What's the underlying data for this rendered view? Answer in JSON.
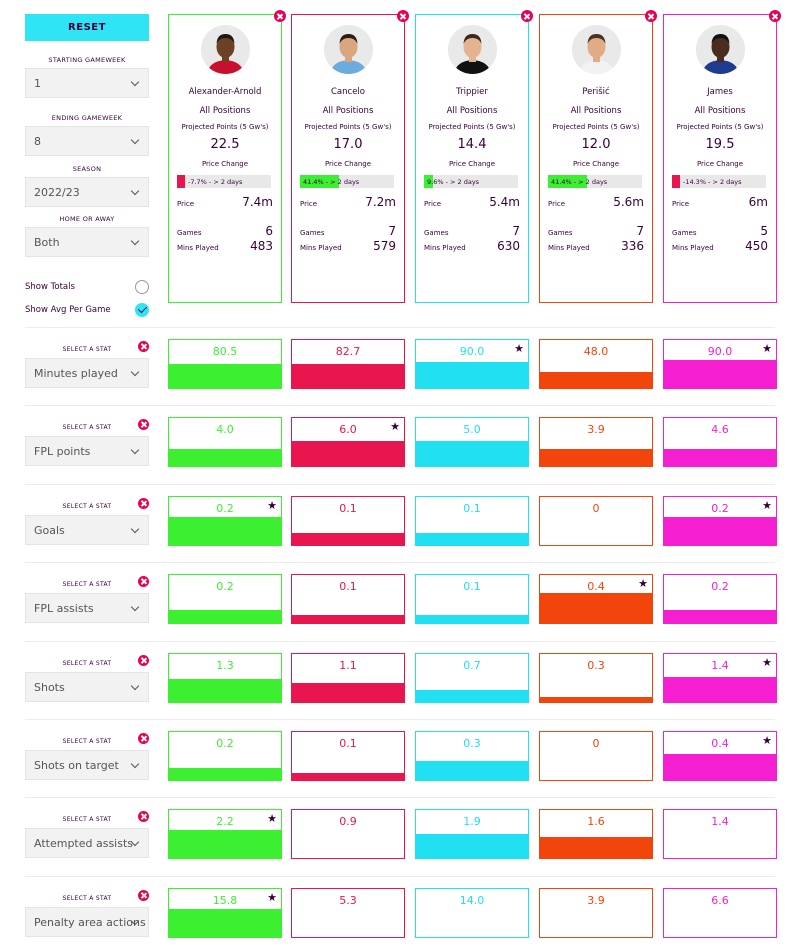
{
  "sidebar": {
    "reset_label": "RESET",
    "starting_gameweek_label": "STARTING GAMEWEEK",
    "starting_gameweek_value": "1",
    "ending_gameweek_label": "ENDING GAMEWEEK",
    "ending_gameweek_value": "8",
    "season_label": "SEASON",
    "season_value": "2022/23",
    "home_away_label": "HOME OR AWAY",
    "home_away_value": "Both",
    "show_totals_label": "Show Totals",
    "show_totals_checked": false,
    "show_avg_label": "Show Avg Per Game",
    "show_avg_checked": true
  },
  "card_labels": {
    "projected_points": "Projected Points (5 Gw's)",
    "price_change": "Price Change",
    "price": "Price",
    "games": "Games",
    "mins_played": "Mins Played"
  },
  "players": [
    {
      "name": "Alexander-Arnold",
      "position": "All Positions",
      "projected_points": "22.5",
      "price_change_text": "-7.7% - > 2 days",
      "price_change_pct": -7.7,
      "price": "7.4m",
      "games": "6",
      "mins_played": "483",
      "color": "#3cf031",
      "shirt": "#c8102e",
      "skin": "#6b4226",
      "hair": "#1a1a1a"
    },
    {
      "name": "Cancelo",
      "position": "All Positions",
      "projected_points": "17.0",
      "price_change_text": "41.4% - > 2 days",
      "price_change_pct": 41.4,
      "price": "7.2m",
      "games": "7",
      "mins_played": "579",
      "color": "#e9154f",
      "shirt": "#6cabdd",
      "skin": "#d9a77f",
      "hair": "#2b1d14"
    },
    {
      "name": "Trippier",
      "position": "All Positions",
      "projected_points": "14.4",
      "price_change_text": "9.6% - > 2 days",
      "price_change_pct": 9.6,
      "price": "5.4m",
      "games": "7",
      "mins_played": "630",
      "color": "#20e0f2",
      "shirt": "#111111",
      "skin": "#e3b48f",
      "hair": "#3a2a1c"
    },
    {
      "name": "Perišić",
      "position": "All Positions",
      "projected_points": "12.0",
      "price_change_text": "41.4% - > 2 days",
      "price_change_pct": 41.4,
      "price": "5.6m",
      "games": "7",
      "mins_played": "336",
      "color": "#f2450c",
      "shirt": "#f2f2f2",
      "skin": "#e0ac86",
      "hair": "#4a3322"
    },
    {
      "name": "James",
      "position": "All Positions",
      "projected_points": "19.5",
      "price_change_text": "-14.3% - > 2 days",
      "price_change_pct": -14.3,
      "price": "6m",
      "games": "5",
      "mins_played": "450",
      "color": "#f51ed0",
      "shirt": "#1f3b8f",
      "skin": "#4a2d1c",
      "hair": "#111111"
    }
  ],
  "select_stat_label": "SELECT A STAT",
  "stats": [
    {
      "name": "Minutes played",
      "values": [
        "80.5",
        "82.7",
        "90.0",
        "48.0",
        "90.0"
      ],
      "fill": [
        0.5,
        0.5,
        0.55,
        0.33,
        0.58
      ],
      "starred": [
        false,
        false,
        true,
        false,
        true
      ]
    },
    {
      "name": "FPL points",
      "values": [
        "4.0",
        "6.0",
        "5.0",
        "3.9",
        "4.6"
      ],
      "fill": [
        0.36,
        0.52,
        0.52,
        0.36,
        0.36
      ],
      "starred": [
        false,
        true,
        false,
        false,
        false
      ]
    },
    {
      "name": "Goals",
      "values": [
        "0.2",
        "0.1",
        "0.1",
        "0",
        "0.2"
      ],
      "fill": [
        0.58,
        0.26,
        0.26,
        0.0,
        0.58
      ],
      "starred": [
        true,
        false,
        false,
        false,
        true
      ]
    },
    {
      "name": "FPL assists",
      "values": [
        "0.2",
        "0.1",
        "0.1",
        "0.4",
        "0.2"
      ],
      "fill": [
        0.28,
        0.16,
        0.16,
        0.62,
        0.28
      ],
      "starred": [
        false,
        false,
        false,
        true,
        false
      ]
    },
    {
      "name": "Shots",
      "values": [
        "1.3",
        "1.1",
        "0.7",
        "0.3",
        "1.4"
      ],
      "fill": [
        0.48,
        0.4,
        0.26,
        0.1,
        0.52
      ],
      "starred": [
        false,
        false,
        false,
        false,
        true
      ]
    },
    {
      "name": "Shots on target",
      "values": [
        "0.2",
        "0.1",
        "0.3",
        "0",
        "0.4"
      ],
      "fill": [
        0.26,
        0.14,
        0.4,
        0.0,
        0.54
      ],
      "starred": [
        false,
        false,
        false,
        false,
        true
      ]
    },
    {
      "name": "Attempted assists",
      "values": [
        "2.2",
        "0.9",
        "1.9",
        "1.6",
        "1.4"
      ],
      "fill": [
        0.58,
        0.0,
        0.5,
        0.44,
        0.0
      ],
      "starred": [
        true,
        false,
        false,
        false,
        false
      ]
    },
    {
      "name": "Penalty area actions",
      "values": [
        "15.8",
        "5.3",
        "14.0",
        "3.9",
        "6.6"
      ],
      "fill": [
        0.58,
        0.0,
        0.0,
        0.0,
        0.0
      ],
      "starred": [
        true,
        false,
        false,
        false,
        false
      ]
    }
  ]
}
